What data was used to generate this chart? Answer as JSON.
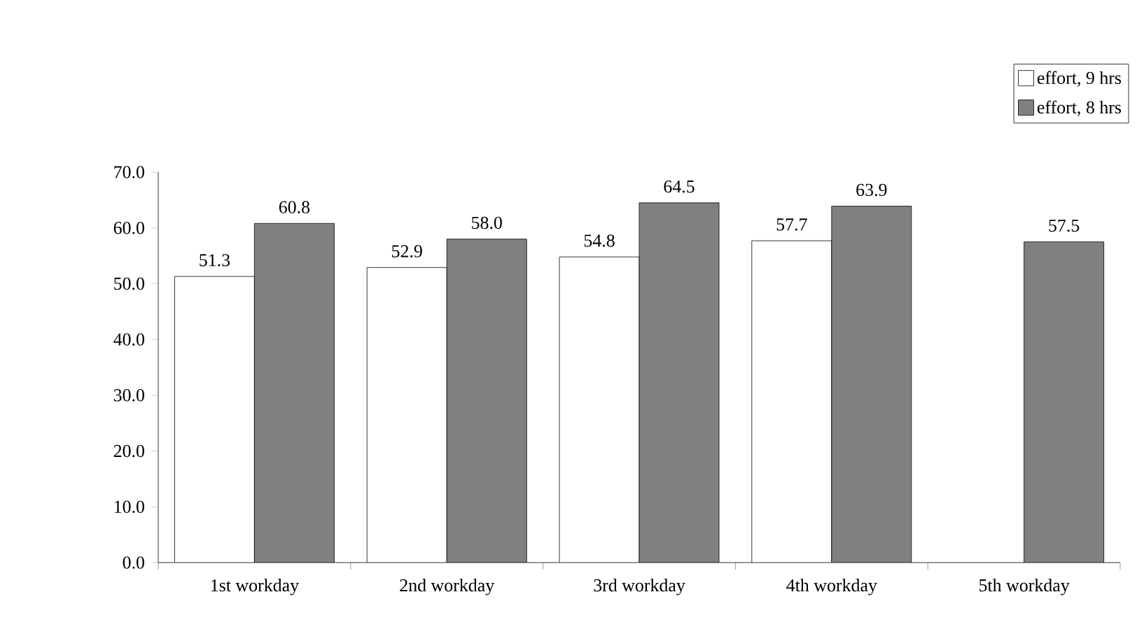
{
  "chart_data": {
    "type": "bar",
    "categories": [
      "1st workday",
      "2nd workday",
      "3rd workday",
      "4th workday",
      "5th workday"
    ],
    "series": [
      {
        "name": "effort, 9 hrs",
        "color": "#ffffff",
        "values": [
          51.3,
          52.9,
          54.8,
          57.7,
          null
        ],
        "value_labels": [
          "51.3",
          "52.9",
          "54.8",
          "57.7",
          null
        ]
      },
      {
        "name": "effort, 8 hrs",
        "color": "#808080",
        "values": [
          60.8,
          58.0,
          64.5,
          63.9,
          57.5
        ],
        "value_labels": [
          "60.8",
          "58.0",
          "64.5",
          "63.9",
          "57.5"
        ]
      }
    ],
    "ylim": [
      0,
      70
    ],
    "yticks": [
      {
        "value": 0,
        "label": "0.0"
      },
      {
        "value": 10,
        "label": "10.0"
      },
      {
        "value": 20,
        "label": "20.0"
      },
      {
        "value": 30,
        "label": "30.0"
      },
      {
        "value": 40,
        "label": "40.0"
      },
      {
        "value": 50,
        "label": "50.0"
      },
      {
        "value": 60,
        "label": "60.0"
      },
      {
        "value": 70,
        "label": "70.0"
      }
    ],
    "grid": false,
    "legend": "top right"
  }
}
